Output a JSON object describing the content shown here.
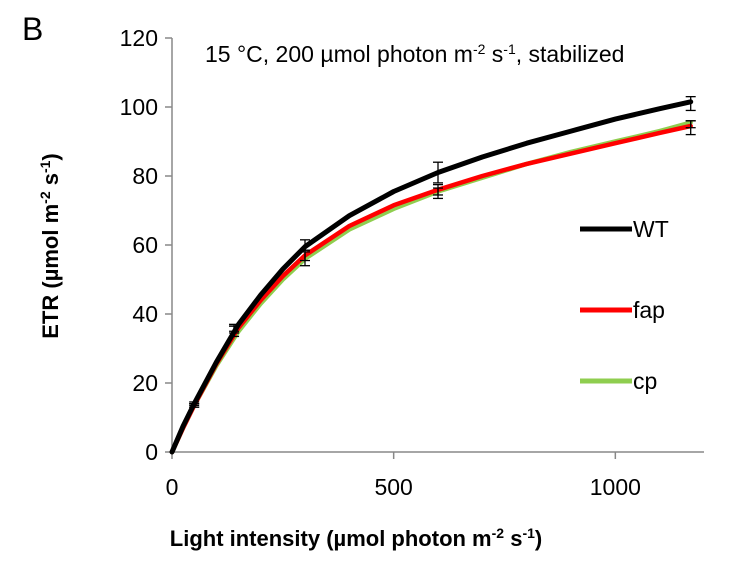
{
  "chart_data": {
    "type": "line",
    "panel_label": "B",
    "title": {
      "main": "15 °C,  200 µmol photon m",
      "sup1": "-2",
      "mid": " s",
      "sup2": "-1",
      "end": ", stabilized"
    },
    "xlabel": {
      "main": "Light intensity (µmol photon m",
      "sup1": "-2",
      "mid": " s",
      "sup2": "-1",
      "end": ")"
    },
    "ylabel": {
      "main": "ETR  (µmol m",
      "sup1": "-2",
      "mid": " s",
      "sup2": "-1",
      "end": ")"
    },
    "xlim": [
      0,
      1200
    ],
    "ylim": [
      0,
      120
    ],
    "x_ticks": [
      "0",
      "500",
      "1000"
    ],
    "y_ticks": [
      "0",
      "20",
      "40",
      "60",
      "80",
      "100",
      "120"
    ],
    "grid": false,
    "legend_position": "right",
    "x": [
      0,
      50,
      140,
      300,
      600,
      1170
    ],
    "series": [
      {
        "name": "WT",
        "color": "#000000",
        "values": [
          0,
          14,
          36,
          60,
          81,
          101
        ],
        "error": [
          0,
          0.5,
          1,
          1.5,
          3,
          2
        ],
        "curve": [
          [
            0,
            0
          ],
          [
            25,
            7.5
          ],
          [
            50,
            14
          ],
          [
            100,
            26
          ],
          [
            150,
            37
          ],
          [
            200,
            45.5
          ],
          [
            250,
            53
          ],
          [
            300,
            59.5
          ],
          [
            400,
            68.5
          ],
          [
            500,
            75.5
          ],
          [
            600,
            81
          ],
          [
            700,
            85.5
          ],
          [
            800,
            89.5
          ],
          [
            900,
            93
          ],
          [
            1000,
            96.5
          ],
          [
            1100,
            99.5
          ],
          [
            1170,
            101.5
          ]
        ]
      },
      {
        "name": "fap",
        "color": "#ff0000",
        "values": [
          0,
          13.5,
          35.5,
          57,
          76,
          94
        ],
        "error": [
          0,
          0.5,
          1,
          1.5,
          1.5,
          2
        ],
        "curve": [
          [
            0,
            0
          ],
          [
            25,
            7
          ],
          [
            50,
            13.5
          ],
          [
            100,
            25.5
          ],
          [
            150,
            36
          ],
          [
            200,
            44
          ],
          [
            250,
            51
          ],
          [
            300,
            57
          ],
          [
            400,
            65.5
          ],
          [
            500,
            71.5
          ],
          [
            600,
            76
          ],
          [
            700,
            80
          ],
          [
            800,
            83.5
          ],
          [
            900,
            86.5
          ],
          [
            1000,
            89.5
          ],
          [
            1100,
            92.5
          ],
          [
            1170,
            94.5
          ]
        ]
      },
      {
        "name": "cp",
        "color": "#8fce4f",
        "values": [
          0,
          13.5,
          35,
          56,
          75,
          95
        ],
        "error": [
          0,
          0.5,
          1.5,
          2,
          1.5,
          1
        ],
        "curve": [
          [
            0,
            0
          ],
          [
            25,
            7
          ],
          [
            50,
            13.5
          ],
          [
            100,
            25
          ],
          [
            150,
            35
          ],
          [
            200,
            43
          ],
          [
            250,
            50
          ],
          [
            300,
            56
          ],
          [
            400,
            64.5
          ],
          [
            500,
            70.5
          ],
          [
            600,
            75.5
          ],
          [
            700,
            79.5
          ],
          [
            800,
            83.5
          ],
          [
            900,
            87
          ],
          [
            1000,
            90
          ],
          [
            1100,
            93
          ],
          [
            1170,
            95.5
          ]
        ]
      }
    ]
  }
}
